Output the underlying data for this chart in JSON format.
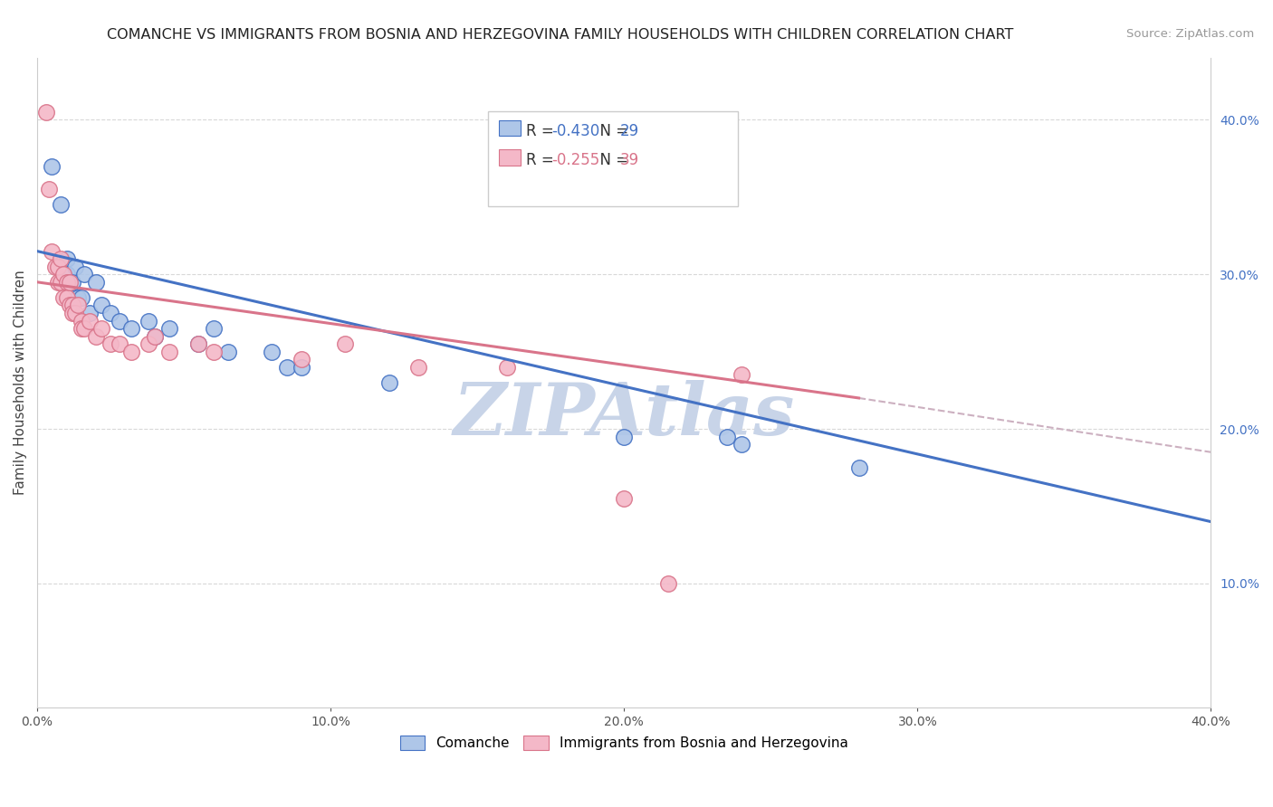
{
  "title": "COMANCHE VS IMMIGRANTS FROM BOSNIA AND HERZEGOVINA FAMILY HOUSEHOLDS WITH CHILDREN CORRELATION CHART",
  "source": "Source: ZipAtlas.com",
  "ylabel": "Family Households with Children",
  "legend1_label": "Comanche",
  "legend2_label": "Immigrants from Bosnia and Herzegovina",
  "R1": -0.43,
  "N1": 29,
  "R2": -0.255,
  "N2": 39,
  "blue_color": "#4472c4",
  "pink_color": "#d9748a",
  "blue_scatter_color": "#aec6e8",
  "pink_scatter_color": "#f4b8c8",
  "xlim": [
    0.0,
    0.4
  ],
  "ylim": [
    0.02,
    0.44
  ],
  "right_ytick_vals": [
    0.1,
    0.2,
    0.3,
    0.4
  ],
  "right_ytick_labels": [
    "10.0%",
    "20.0%",
    "30.0%",
    "40.0%"
  ],
  "xtick_vals": [
    0.0,
    0.1,
    0.2,
    0.3,
    0.4
  ],
  "xtick_labels": [
    "0.0%",
    "10.0%",
    "20.0%",
    "30.0%",
    "40.0%"
  ],
  "dashed_line_color": "#ccb0c0",
  "grid_color": "#d8d8d8",
  "background_color": "#ffffff",
  "watermark_text": "ZIPAtlas",
  "watermark_color": "#c8d4e8",
  "blue_scatter": [
    [
      0.005,
      0.37
    ],
    [
      0.008,
      0.345
    ],
    [
      0.01,
      0.31
    ],
    [
      0.01,
      0.3
    ],
    [
      0.012,
      0.295
    ],
    [
      0.013,
      0.305
    ],
    [
      0.014,
      0.285
    ],
    [
      0.015,
      0.285
    ],
    [
      0.016,
      0.3
    ],
    [
      0.018,
      0.275
    ],
    [
      0.02,
      0.295
    ],
    [
      0.022,
      0.28
    ],
    [
      0.025,
      0.275
    ],
    [
      0.028,
      0.27
    ],
    [
      0.032,
      0.265
    ],
    [
      0.038,
      0.27
    ],
    [
      0.04,
      0.26
    ],
    [
      0.045,
      0.265
    ],
    [
      0.055,
      0.255
    ],
    [
      0.06,
      0.265
    ],
    [
      0.065,
      0.25
    ],
    [
      0.08,
      0.25
    ],
    [
      0.085,
      0.24
    ],
    [
      0.09,
      0.24
    ],
    [
      0.12,
      0.23
    ],
    [
      0.2,
      0.195
    ],
    [
      0.235,
      0.195
    ],
    [
      0.24,
      0.19
    ],
    [
      0.28,
      0.175
    ]
  ],
  "pink_scatter": [
    [
      0.003,
      0.405
    ],
    [
      0.004,
      0.355
    ],
    [
      0.005,
      0.315
    ],
    [
      0.006,
      0.305
    ],
    [
      0.007,
      0.305
    ],
    [
      0.007,
      0.295
    ],
    [
      0.008,
      0.31
    ],
    [
      0.008,
      0.295
    ],
    [
      0.009,
      0.3
    ],
    [
      0.009,
      0.285
    ],
    [
      0.01,
      0.295
    ],
    [
      0.01,
      0.285
    ],
    [
      0.011,
      0.295
    ],
    [
      0.011,
      0.28
    ],
    [
      0.012,
      0.28
    ],
    [
      0.012,
      0.275
    ],
    [
      0.013,
      0.275
    ],
    [
      0.014,
      0.28
    ],
    [
      0.015,
      0.27
    ],
    [
      0.015,
      0.265
    ],
    [
      0.016,
      0.265
    ],
    [
      0.018,
      0.27
    ],
    [
      0.02,
      0.26
    ],
    [
      0.022,
      0.265
    ],
    [
      0.025,
      0.255
    ],
    [
      0.028,
      0.255
    ],
    [
      0.032,
      0.25
    ],
    [
      0.038,
      0.255
    ],
    [
      0.04,
      0.26
    ],
    [
      0.045,
      0.25
    ],
    [
      0.055,
      0.255
    ],
    [
      0.06,
      0.25
    ],
    [
      0.09,
      0.245
    ],
    [
      0.105,
      0.255
    ],
    [
      0.13,
      0.24
    ],
    [
      0.16,
      0.24
    ],
    [
      0.2,
      0.155
    ],
    [
      0.215,
      0.1
    ],
    [
      0.24,
      0.235
    ]
  ],
  "blue_line": [
    [
      0.0,
      0.315
    ],
    [
      0.4,
      0.14
    ]
  ],
  "pink_line_solid": [
    [
      0.0,
      0.295
    ],
    [
      0.28,
      0.22
    ]
  ],
  "pink_line_dashed": [
    [
      0.28,
      0.22
    ],
    [
      0.4,
      0.185
    ]
  ]
}
